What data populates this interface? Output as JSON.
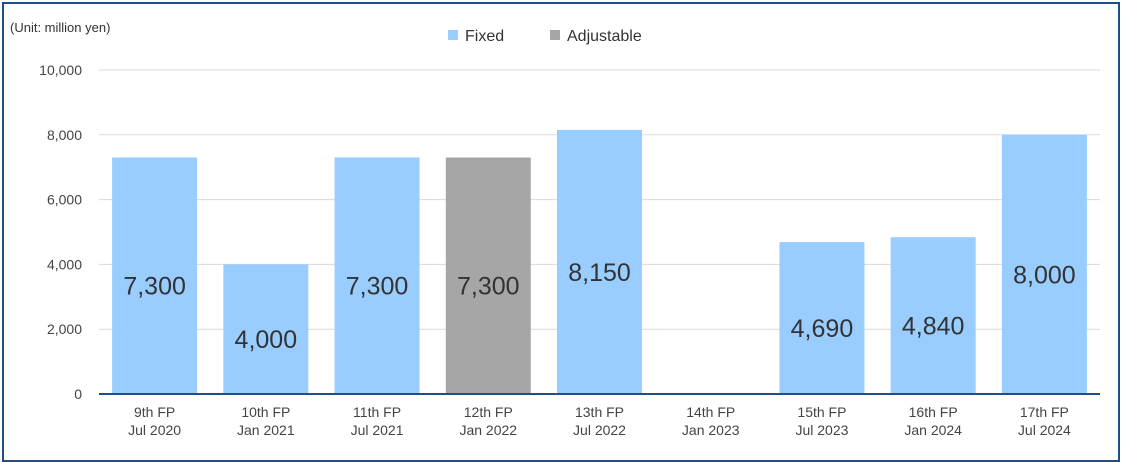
{
  "chart_data": {
    "type": "bar",
    "unit_label": "(Unit: million yen)",
    "legend": [
      {
        "name": "Fixed",
        "color": "#99ccff"
      },
      {
        "name": "Adjustable",
        "color": "#a6a6a6"
      }
    ],
    "legend_position": "top-center",
    "ylim": [
      0,
      10000
    ],
    "yticks": [
      "0",
      "2,000",
      "4,000",
      "6,000",
      "8,000",
      "10,000"
    ],
    "ytick_values": [
      0,
      2000,
      4000,
      6000,
      8000,
      10000
    ],
    "grid": true,
    "categories": [
      {
        "line1": "9th FP",
        "line2": "Jul 2020"
      },
      {
        "line1": "10th FP",
        "line2": "Jan 2021"
      },
      {
        "line1": "11th FP",
        "line2": "Jul 2021"
      },
      {
        "line1": "12th FP",
        "line2": "Jan 2022"
      },
      {
        "line1": "13th FP",
        "line2": "Jul 2022"
      },
      {
        "line1": "14th FP",
        "line2": "Jan 2023"
      },
      {
        "line1": "15th FP",
        "line2": "Jul 2023"
      },
      {
        "line1": "16th FP",
        "line2": "Jan 2024"
      },
      {
        "line1": "17th FP",
        "line2": "Jul 2024"
      }
    ],
    "values": [
      7300,
      4000,
      7300,
      7300,
      8150,
      0,
      4690,
      4840,
      8000
    ],
    "value_labels": [
      "7,300",
      "4,000",
      "7,300",
      "7,300",
      "8,150",
      "",
      "4,690",
      "4,840",
      "8,000"
    ],
    "series_type": [
      "Fixed",
      "Fixed",
      "Fixed",
      "Adjustable",
      "Fixed",
      "Fixed",
      "Fixed",
      "Fixed",
      "Fixed"
    ]
  }
}
